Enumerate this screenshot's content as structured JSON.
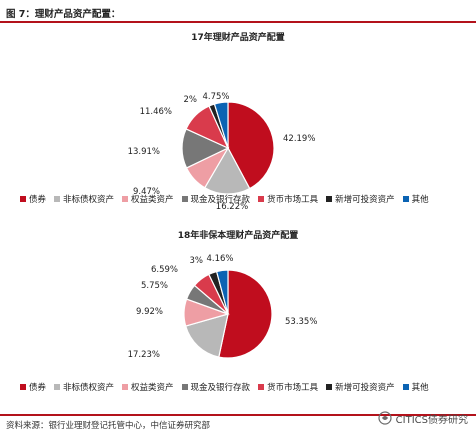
{
  "figure": {
    "title": "图 7：理财产品资产配置：",
    "source": "资料来源：银行业理财登记托管中心，中信证券研究部",
    "watermark": "CITICS债券研究"
  },
  "chart_data": [
    {
      "type": "pie",
      "title": "17年理财产品资产配置",
      "legend_placement": "bottom",
      "categories": [
        "债券",
        "非标债权资产",
        "权益类资产",
        "现金及银行存款",
        "货币市场工具",
        "新增可投资资产",
        "其他"
      ],
      "values": [
        42.19,
        16.22,
        9.47,
        13.91,
        11.46,
        2.0,
        4.75
      ],
      "labels": [
        "42.19%",
        "16.22%",
        "9.47%",
        "13.91%",
        "11.46%",
        "2%",
        "4.75%"
      ],
      "colors": [
        "#c00d1e",
        "#b8b8b8",
        "#ee9ea4",
        "#777777",
        "#d93b4c",
        "#222222",
        "#0b63b3"
      ]
    },
    {
      "type": "pie",
      "title": "18年非保本理财产品资产配置",
      "legend_placement": "bottom",
      "categories": [
        "债券",
        "非标债权资产",
        "权益类资产",
        "现金及银行存款",
        "货币市场工具",
        "新增可投资资产",
        "其他"
      ],
      "values": [
        53.35,
        17.23,
        9.92,
        5.75,
        6.59,
        3.0,
        4.16
      ],
      "labels": [
        "53.35%",
        "17.23%",
        "9.92%",
        "5.75%",
        "6.59%",
        "3%",
        "4.16%"
      ],
      "colors": [
        "#c00d1e",
        "#b8b8b8",
        "#ee9ea4",
        "#777777",
        "#d93b4c",
        "#222222",
        "#0b63b3"
      ]
    }
  ]
}
